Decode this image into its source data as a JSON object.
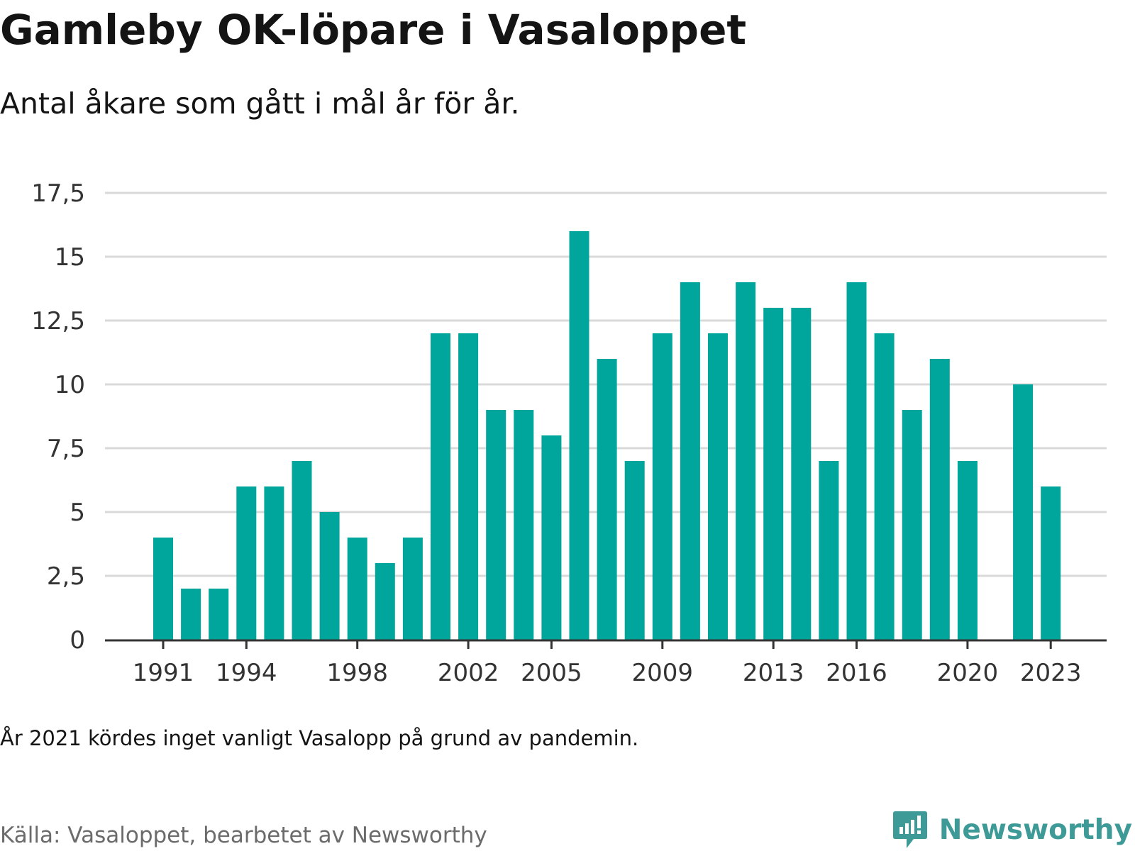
{
  "header": {
    "title": "Gamleby OK-löpare i Vasaloppet",
    "subtitle": "Antal åkare som gått i mål år för år."
  },
  "footer": {
    "note": "År 2021 kördes inget vanligt Vasalopp på grund av pandemin.",
    "source": "Källa: Vasaloppet, bearbetet av Newsworthy",
    "brand": "Newsworthy"
  },
  "colors": {
    "bar": "#00a59b",
    "grid": "#d9d9d9",
    "axis": "#333333",
    "brand": "#3d9a97"
  },
  "icons": {
    "brand_logo": "bar-chart-speech-bubble-icon"
  },
  "chart_data": {
    "type": "bar",
    "title": "Gamleby OK-löpare i Vasaloppet",
    "subtitle": "Antal åkare som gått i mål år för år.",
    "xlabel": "",
    "ylabel": "",
    "ylim": [
      0,
      17.5
    ],
    "yticks": [
      "0",
      "2,5",
      "5",
      "7,5",
      "10",
      "12,5",
      "15",
      "17,5"
    ],
    "ytick_values": [
      0,
      2.5,
      5,
      7.5,
      10,
      12.5,
      15,
      17.5
    ],
    "xticks": [
      "1991",
      "1994",
      "1998",
      "2002",
      "2005",
      "2009",
      "2013",
      "2016",
      "2020",
      "2023"
    ],
    "grid": true,
    "legend": "none",
    "categories": [
      1991,
      1992,
      1993,
      1994,
      1995,
      1996,
      1997,
      1998,
      1999,
      2000,
      2001,
      2002,
      2003,
      2004,
      2005,
      2006,
      2007,
      2008,
      2009,
      2010,
      2011,
      2012,
      2013,
      2014,
      2015,
      2016,
      2017,
      2018,
      2019,
      2020,
      2021,
      2022,
      2023
    ],
    "values": [
      4,
      2,
      2,
      6,
      6,
      7,
      5,
      4,
      3,
      4,
      12,
      12,
      9,
      9,
      8,
      16,
      11,
      7,
      12,
      14,
      12,
      14,
      13,
      13,
      7,
      14,
      12,
      9,
      11,
      7,
      null,
      10,
      6
    ]
  }
}
